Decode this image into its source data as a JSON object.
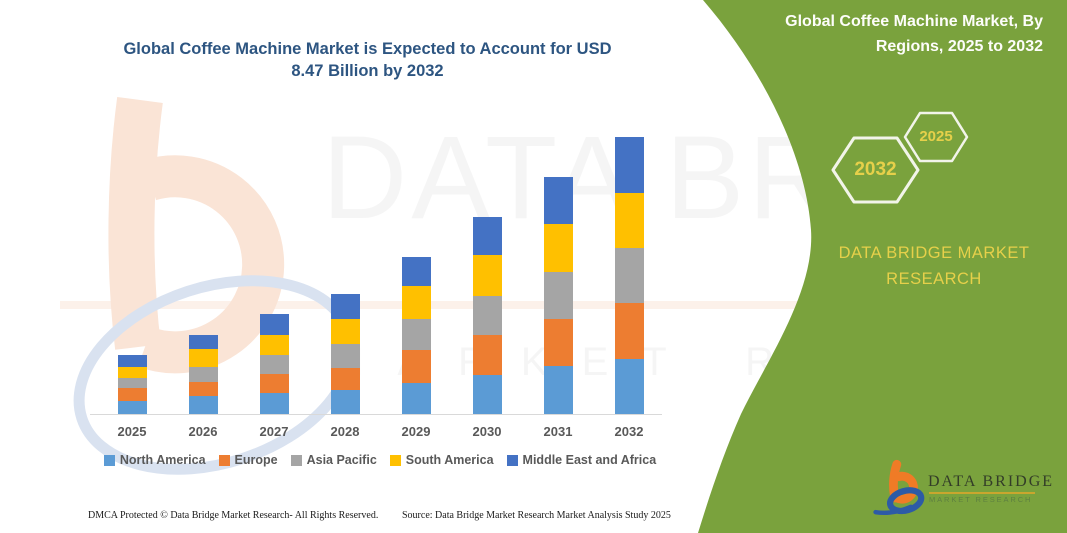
{
  "chart_data": {
    "type": "bar",
    "stacked": true,
    "title": "Global Coffee Machine Market is Expected to Account for USD 8.47 Billion by 2032",
    "title_lines": [
      "Global Coffee Machine Market is Expected to Account for USD",
      "8.47 Billion by 2032"
    ],
    "unit": "USD Billion",
    "categories": [
      "2025",
      "2026",
      "2027",
      "2028",
      "2029",
      "2030",
      "2031",
      "2032"
    ],
    "series": [
      {
        "name": "North America",
        "color": "#5B9BD5",
        "values": [
          0.4,
          0.55,
          0.65,
          0.73,
          0.95,
          1.18,
          1.48,
          1.68
        ]
      },
      {
        "name": "Europe",
        "color": "#ED7D31",
        "values": [
          0.4,
          0.42,
          0.56,
          0.68,
          1.01,
          1.25,
          1.43,
          1.72
        ]
      },
      {
        "name": "Asia Pacific",
        "color": "#A5A5A5",
        "values": [
          0.31,
          0.46,
          0.61,
          0.74,
          0.96,
          1.17,
          1.44,
          1.68
        ]
      },
      {
        "name": "South America",
        "color": "#FFC000",
        "values": [
          0.34,
          0.56,
          0.61,
          0.75,
          1.01,
          1.27,
          1.45,
          1.69
        ]
      },
      {
        "name": "Middle East and Africa",
        "color": "#4472C4",
        "values": [
          0.35,
          0.44,
          0.62,
          0.77,
          0.88,
          1.17,
          1.46,
          1.7
        ]
      }
    ],
    "totals_usd_billion": [
      1.8,
      2.43,
      3.05,
      3.67,
      4.81,
      6.04,
      7.26,
      8.47
    ],
    "ylim": [
      0,
      8.7
    ],
    "gridlines": false,
    "legend_position": "bottom"
  },
  "right_panel": {
    "heading_lines": [
      "Global Coffee Machine Market, By",
      "Regions, 2025 to 2032"
    ],
    "hexagon_large": "2032",
    "hexagon_small": "2025",
    "brand_caption": "DATA BRIDGE MARKET RESEARCH",
    "logo_name": "DATA BRIDGE",
    "logo_subtext": "MARKET RESEARCH"
  },
  "watermark": {
    "line1": "DATA BRIDGE",
    "line2": "MARKET RESEARCH"
  },
  "footer": {
    "dmca": "DMCA Protected © Data Bridge Market Research-  All Rights Reserved.",
    "source": "Source: Data Bridge Market Research  Market Analysis Study 2025"
  },
  "colors": {
    "panel_green": "#7AA23D",
    "accent_yellow": "#E6D04A",
    "title_blue": "#2D5581",
    "axis_label": "#595959",
    "hexagon_outline": "#F2F4E9"
  }
}
